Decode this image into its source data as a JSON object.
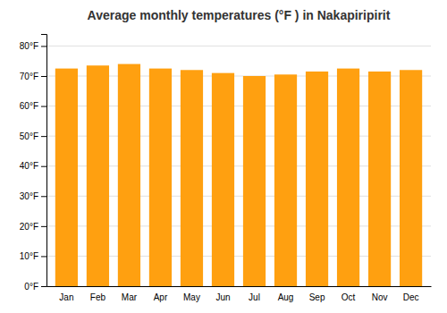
{
  "chart_data": {
    "type": "bar",
    "title": "Average monthly temperatures (°F ) in Nakapiripirit",
    "categories": [
      "Jan",
      "Feb",
      "Mar",
      "Apr",
      "May",
      "Jun",
      "Jul",
      "Aug",
      "Sep",
      "Oct",
      "Nov",
      "Dec"
    ],
    "values": [
      72.5,
      73.5,
      74.0,
      72.5,
      72.0,
      71.0,
      70.0,
      70.5,
      71.5,
      72.5,
      71.5,
      72.0
    ],
    "color": "#FFA010",
    "ylim": [
      0,
      84
    ],
    "yticks": [
      {
        "value": 0,
        "label": "0°F"
      },
      {
        "value": 10,
        "label": "10°F"
      },
      {
        "value": 20,
        "label": "20°F"
      },
      {
        "value": 30,
        "label": "30°F"
      },
      {
        "value": 40,
        "label": "40°F"
      },
      {
        "value": 50,
        "label": "50°F"
      },
      {
        "value": 60,
        "label": "60°F"
      },
      {
        "value": 70,
        "label": "70°F"
      },
      {
        "value": 80,
        "label": "80°F"
      }
    ],
    "grid": true
  }
}
